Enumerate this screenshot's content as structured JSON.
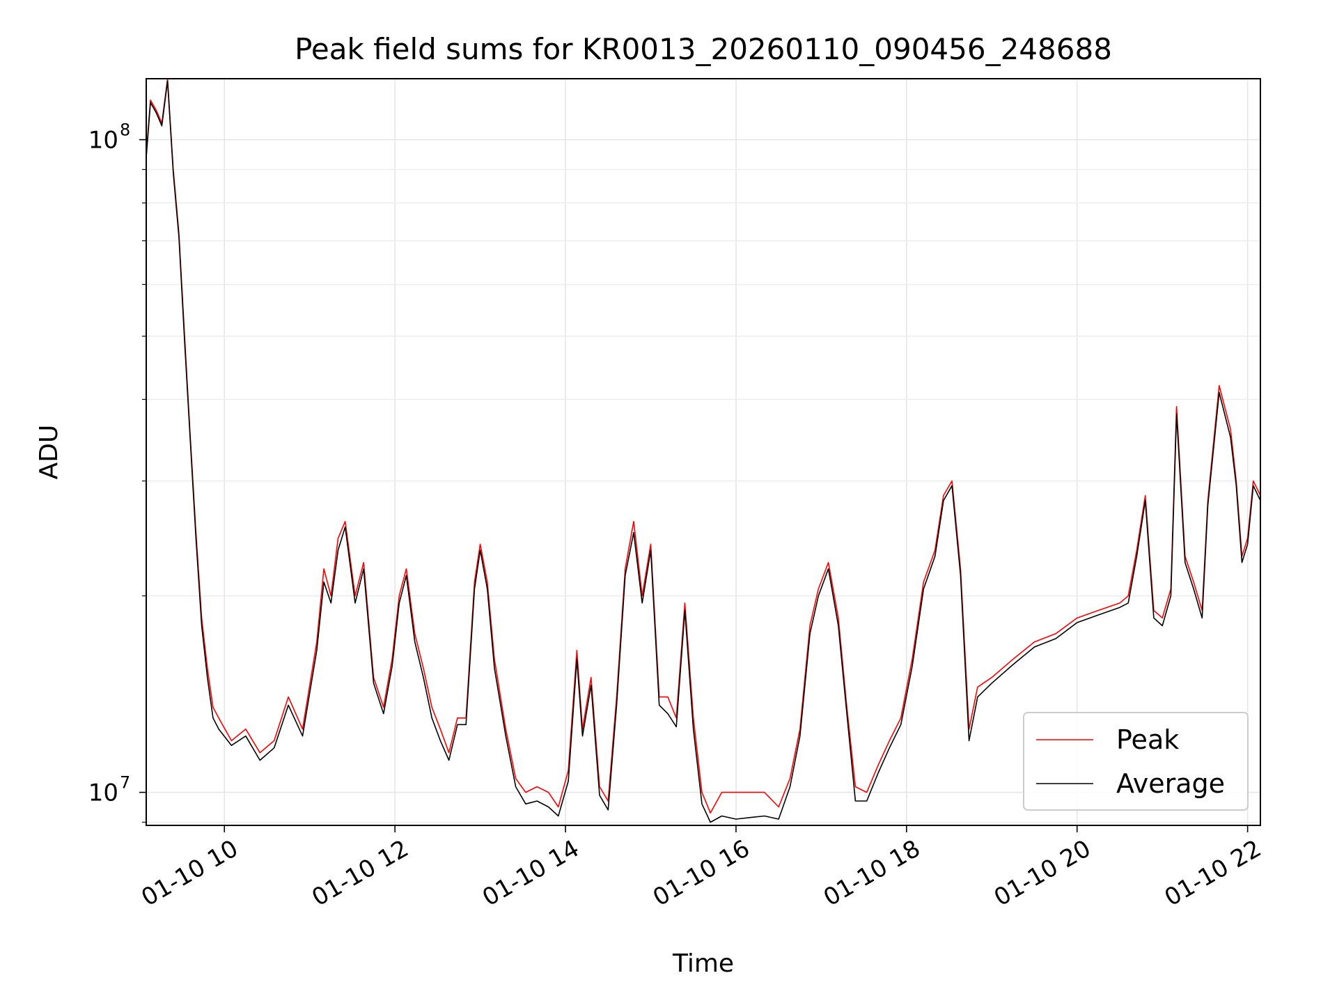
{
  "chart_data": {
    "type": "line",
    "title": "Peak field sums for KR0013_20260110_090456_248688",
    "xlabel": "Time",
    "ylabel": "ADU",
    "xlim": [
      "2026-01-10 09:05",
      "2026-01-10 22:09"
    ],
    "ylim": [
      8900000,
      124000000
    ],
    "yscale": "log",
    "grid": true,
    "legend_position": "lower-right",
    "x_ticks": [
      {
        "value": "2026-01-10 10:00",
        "label": "01-10 10"
      },
      {
        "value": "2026-01-10 12:00",
        "label": "01-10 12"
      },
      {
        "value": "2026-01-10 14:00",
        "label": "01-10 14"
      },
      {
        "value": "2026-01-10 16:00",
        "label": "01-10 16"
      },
      {
        "value": "2026-01-10 18:00",
        "label": "01-10 18"
      },
      {
        "value": "2026-01-10 20:00",
        "label": "01-10 20"
      },
      {
        "value": "2026-01-10 22:00",
        "label": "01-10 22"
      }
    ],
    "y_ticks": [
      {
        "value": 10000000,
        "label_base": "10",
        "label_exp": "7"
      },
      {
        "value": 100000000,
        "label_base": "10",
        "label_exp": "8"
      }
    ],
    "series": [
      {
        "name": "Peak",
        "color": "#ff0000",
        "points": [
          [
            "2026-01-10 09:05",
            95000000
          ],
          [
            "2026-01-10 09:08",
            115000000
          ],
          [
            "2026-01-10 09:12",
            111000000
          ],
          [
            "2026-01-10 09:16",
            106000000
          ],
          [
            "2026-01-10 09:20",
            124000000
          ],
          [
            "2026-01-10 09:24",
            90000000
          ],
          [
            "2026-01-10 09:28",
            72000000
          ],
          [
            "2026-01-10 09:32",
            50000000
          ],
          [
            "2026-01-10 09:36",
            35000000
          ],
          [
            "2026-01-10 09:40",
            25000000
          ],
          [
            "2026-01-10 09:44",
            18500000
          ],
          [
            "2026-01-10 09:48",
            15500000
          ],
          [
            "2026-01-10 09:52",
            13500000
          ],
          [
            "2026-01-10 09:56",
            13000000
          ],
          [
            "2026-01-10 10:05",
            12000000
          ],
          [
            "2026-01-10 10:15",
            12500000
          ],
          [
            "2026-01-10 10:25",
            11500000
          ],
          [
            "2026-01-10 10:35",
            12000000
          ],
          [
            "2026-01-10 10:45",
            14000000
          ],
          [
            "2026-01-10 10:55",
            12500000
          ],
          [
            "2026-01-10 11:05",
            17000000
          ],
          [
            "2026-01-10 11:10",
            22000000
          ],
          [
            "2026-01-10 11:15",
            20000000
          ],
          [
            "2026-01-10 11:20",
            24500000
          ],
          [
            "2026-01-10 11:25",
            26000000
          ],
          [
            "2026-01-10 11:32",
            20000000
          ],
          [
            "2026-01-10 11:38",
            22500000
          ],
          [
            "2026-01-10 11:45",
            15000000
          ],
          [
            "2026-01-10 11:52",
            13500000
          ],
          [
            "2026-01-10 11:58",
            16000000
          ],
          [
            "2026-01-10 12:03",
            20000000
          ],
          [
            "2026-01-10 12:08",
            22000000
          ],
          [
            "2026-01-10 12:14",
            17500000
          ],
          [
            "2026-01-10 12:20",
            15500000
          ],
          [
            "2026-01-10 12:26",
            13500000
          ],
          [
            "2026-01-10 12:32",
            12500000
          ],
          [
            "2026-01-10 12:38",
            11500000
          ],
          [
            "2026-01-10 12:44",
            13000000
          ],
          [
            "2026-01-10 12:50",
            13000000
          ],
          [
            "2026-01-10 12:56",
            21000000
          ],
          [
            "2026-01-10 13:00",
            24000000
          ],
          [
            "2026-01-10 13:05",
            21000000
          ],
          [
            "2026-01-10 13:10",
            16000000
          ],
          [
            "2026-01-10 13:18",
            12500000
          ],
          [
            "2026-01-10 13:25",
            10500000
          ],
          [
            "2026-01-10 13:32",
            10000000
          ],
          [
            "2026-01-10 13:40",
            10200000
          ],
          [
            "2026-01-10 13:48",
            10000000
          ],
          [
            "2026-01-10 13:55",
            9500000
          ],
          [
            "2026-01-10 14:02",
            10800000
          ],
          [
            "2026-01-10 14:08",
            16500000
          ],
          [
            "2026-01-10 14:12",
            12500000
          ],
          [
            "2026-01-10 14:18",
            15000000
          ],
          [
            "2026-01-10 14:24",
            10200000
          ],
          [
            "2026-01-10 14:30",
            9700000
          ],
          [
            "2026-01-10 14:36",
            14000000
          ],
          [
            "2026-01-10 14:42",
            22000000
          ],
          [
            "2026-01-10 14:48",
            26000000
          ],
          [
            "2026-01-10 14:54",
            20000000
          ],
          [
            "2026-01-10 15:00",
            24000000
          ],
          [
            "2026-01-10 15:06",
            14000000
          ],
          [
            "2026-01-10 15:12",
            14000000
          ],
          [
            "2026-01-10 15:18",
            13000000
          ],
          [
            "2026-01-10 15:24",
            19500000
          ],
          [
            "2026-01-10 15:30",
            13000000
          ],
          [
            "2026-01-10 15:36",
            10000000
          ],
          [
            "2026-01-10 15:42",
            9300000
          ],
          [
            "2026-01-10 15:50",
            10000000
          ],
          [
            "2026-01-10 16:00",
            10000000
          ],
          [
            "2026-01-10 16:10",
            10000000
          ],
          [
            "2026-01-10 16:20",
            10000000
          ],
          [
            "2026-01-10 16:30",
            9500000
          ],
          [
            "2026-01-10 16:38",
            10500000
          ],
          [
            "2026-01-10 16:45",
            12500000
          ],
          [
            "2026-01-10 16:52",
            18000000
          ],
          [
            "2026-01-10 16:58",
            20500000
          ],
          [
            "2026-01-10 17:05",
            22500000
          ],
          [
            "2026-01-10 17:12",
            18500000
          ],
          [
            "2026-01-10 17:18",
            13500000
          ],
          [
            "2026-01-10 17:24",
            10200000
          ],
          [
            "2026-01-10 17:32",
            10000000
          ],
          [
            "2026-01-10 17:40",
            11000000
          ],
          [
            "2026-01-10 17:48",
            12000000
          ],
          [
            "2026-01-10 17:56",
            13000000
          ],
          [
            "2026-01-10 18:04",
            16000000
          ],
          [
            "2026-01-10 18:12",
            21000000
          ],
          [
            "2026-01-10 18:20",
            23500000
          ],
          [
            "2026-01-10 18:26",
            28500000
          ],
          [
            "2026-01-10 18:32",
            30000000
          ],
          [
            "2026-01-10 18:38",
            22000000
          ],
          [
            "2026-01-10 18:44",
            12500000
          ],
          [
            "2026-01-10 18:50",
            14500000
          ],
          [
            "2026-01-10 19:00",
            15000000
          ],
          [
            "2026-01-10 19:15",
            16000000
          ],
          [
            "2026-01-10 19:30",
            17000000
          ],
          [
            "2026-01-10 19:45",
            17500000
          ],
          [
            "2026-01-10 20:00",
            18500000
          ],
          [
            "2026-01-10 20:15",
            19000000
          ],
          [
            "2026-01-10 20:30",
            19500000
          ],
          [
            "2026-01-10 20:36",
            20000000
          ],
          [
            "2026-01-10 20:42",
            23500000
          ],
          [
            "2026-01-10 20:48",
            28500000
          ],
          [
            "2026-01-10 20:54",
            19000000
          ],
          [
            "2026-01-10 21:00",
            18500000
          ],
          [
            "2026-01-10 21:06",
            20500000
          ],
          [
            "2026-01-10 21:10",
            39000000
          ],
          [
            "2026-01-10 21:16",
            23000000
          ],
          [
            "2026-01-10 21:22",
            21000000
          ],
          [
            "2026-01-10 21:28",
            19000000
          ],
          [
            "2026-01-10 21:32",
            28000000
          ],
          [
            "2026-01-10 21:40",
            42000000
          ],
          [
            "2026-01-10 21:48",
            36000000
          ],
          [
            "2026-01-10 21:52",
            30000000
          ],
          [
            "2026-01-10 21:56",
            23000000
          ],
          [
            "2026-01-10 22:00",
            24500000
          ],
          [
            "2026-01-10 22:04",
            30000000
          ],
          [
            "2026-01-10 22:09",
            28500000
          ]
        ]
      },
      {
        "name": "Average",
        "color": "#000000",
        "points": [
          [
            "2026-01-10 09:05",
            94000000
          ],
          [
            "2026-01-10 09:08",
            114000000
          ],
          [
            "2026-01-10 09:12",
            110000000
          ],
          [
            "2026-01-10 09:16",
            105000000
          ],
          [
            "2026-01-10 09:20",
            123000000
          ],
          [
            "2026-01-10 09:24",
            89000000
          ],
          [
            "2026-01-10 09:28",
            71000000
          ],
          [
            "2026-01-10 09:32",
            49000000
          ],
          [
            "2026-01-10 09:36",
            34500000
          ],
          [
            "2026-01-10 09:40",
            24500000
          ],
          [
            "2026-01-10 09:44",
            18000000
          ],
          [
            "2026-01-10 09:48",
            15000000
          ],
          [
            "2026-01-10 09:52",
            13000000
          ],
          [
            "2026-01-10 09:56",
            12500000
          ],
          [
            "2026-01-10 10:05",
            11800000
          ],
          [
            "2026-01-10 10:15",
            12200000
          ],
          [
            "2026-01-10 10:25",
            11200000
          ],
          [
            "2026-01-10 10:35",
            11700000
          ],
          [
            "2026-01-10 10:45",
            13600000
          ],
          [
            "2026-01-10 10:55",
            12200000
          ],
          [
            "2026-01-10 11:05",
            16500000
          ],
          [
            "2026-01-10 11:10",
            21000000
          ],
          [
            "2026-01-10 11:15",
            19500000
          ],
          [
            "2026-01-10 11:20",
            23500000
          ],
          [
            "2026-01-10 11:25",
            25500000
          ],
          [
            "2026-01-10 11:32",
            19500000
          ],
          [
            "2026-01-10 11:38",
            22000000
          ],
          [
            "2026-01-10 11:45",
            14700000
          ],
          [
            "2026-01-10 11:52",
            13200000
          ],
          [
            "2026-01-10 11:58",
            15600000
          ],
          [
            "2026-01-10 12:03",
            19500000
          ],
          [
            "2026-01-10 12:08",
            21500000
          ],
          [
            "2026-01-10 12:14",
            17000000
          ],
          [
            "2026-01-10 12:20",
            15000000
          ],
          [
            "2026-01-10 12:26",
            13000000
          ],
          [
            "2026-01-10 12:32",
            12000000
          ],
          [
            "2026-01-10 12:38",
            11200000
          ],
          [
            "2026-01-10 12:44",
            12700000
          ],
          [
            "2026-01-10 12:50",
            12700000
          ],
          [
            "2026-01-10 12:56",
            20500000
          ],
          [
            "2026-01-10 13:00",
            23500000
          ],
          [
            "2026-01-10 13:05",
            20500000
          ],
          [
            "2026-01-10 13:10",
            15500000
          ],
          [
            "2026-01-10 13:18",
            12200000
          ],
          [
            "2026-01-10 13:25",
            10200000
          ],
          [
            "2026-01-10 13:32",
            9600000
          ],
          [
            "2026-01-10 13:40",
            9700000
          ],
          [
            "2026-01-10 13:48",
            9500000
          ],
          [
            "2026-01-10 13:55",
            9200000
          ],
          [
            "2026-01-10 14:02",
            10400000
          ],
          [
            "2026-01-10 14:08",
            16000000
          ],
          [
            "2026-01-10 14:12",
            12200000
          ],
          [
            "2026-01-10 14:18",
            14600000
          ],
          [
            "2026-01-10 14:24",
            9900000
          ],
          [
            "2026-01-10 14:30",
            9400000
          ],
          [
            "2026-01-10 14:36",
            13600000
          ],
          [
            "2026-01-10 14:42",
            21500000
          ],
          [
            "2026-01-10 14:48",
            25000000
          ],
          [
            "2026-01-10 14:54",
            19500000
          ],
          [
            "2026-01-10 15:00",
            23500000
          ],
          [
            "2026-01-10 15:06",
            13600000
          ],
          [
            "2026-01-10 15:12",
            13200000
          ],
          [
            "2026-01-10 15:18",
            12600000
          ],
          [
            "2026-01-10 15:24",
            19000000
          ],
          [
            "2026-01-10 15:30",
            12500000
          ],
          [
            "2026-01-10 15:36",
            9600000
          ],
          [
            "2026-01-10 15:42",
            9000000
          ],
          [
            "2026-01-10 15:50",
            9200000
          ],
          [
            "2026-01-10 16:00",
            9100000
          ],
          [
            "2026-01-10 16:10",
            9150000
          ],
          [
            "2026-01-10 16:20",
            9200000
          ],
          [
            "2026-01-10 16:30",
            9100000
          ],
          [
            "2026-01-10 16:38",
            10200000
          ],
          [
            "2026-01-10 16:45",
            12200000
          ],
          [
            "2026-01-10 16:52",
            17500000
          ],
          [
            "2026-01-10 16:58",
            20000000
          ],
          [
            "2026-01-10 17:05",
            22000000
          ],
          [
            "2026-01-10 17:12",
            18000000
          ],
          [
            "2026-01-10 17:18",
            13200000
          ],
          [
            "2026-01-10 17:24",
            9700000
          ],
          [
            "2026-01-10 17:32",
            9700000
          ],
          [
            "2026-01-10 17:40",
            10700000
          ],
          [
            "2026-01-10 17:48",
            11700000
          ],
          [
            "2026-01-10 17:56",
            12700000
          ],
          [
            "2026-01-10 18:04",
            15600000
          ],
          [
            "2026-01-10 18:12",
            20500000
          ],
          [
            "2026-01-10 18:20",
            23000000
          ],
          [
            "2026-01-10 18:26",
            28000000
          ],
          [
            "2026-01-10 18:32",
            29500000
          ],
          [
            "2026-01-10 18:38",
            21500000
          ],
          [
            "2026-01-10 18:44",
            12000000
          ],
          [
            "2026-01-10 18:50",
            14000000
          ],
          [
            "2026-01-10 19:00",
            14700000
          ],
          [
            "2026-01-10 19:15",
            15700000
          ],
          [
            "2026-01-10 19:30",
            16700000
          ],
          [
            "2026-01-10 19:45",
            17200000
          ],
          [
            "2026-01-10 20:00",
            18200000
          ],
          [
            "2026-01-10 20:15",
            18700000
          ],
          [
            "2026-01-10 20:30",
            19200000
          ],
          [
            "2026-01-10 20:36",
            19500000
          ],
          [
            "2026-01-10 20:42",
            23000000
          ],
          [
            "2026-01-10 20:48",
            28000000
          ],
          [
            "2026-01-10 20:54",
            18500000
          ],
          [
            "2026-01-10 21:00",
            18000000
          ],
          [
            "2026-01-10 21:06",
            20000000
          ],
          [
            "2026-01-10 21:10",
            38000000
          ],
          [
            "2026-01-10 21:16",
            22500000
          ],
          [
            "2026-01-10 21:22",
            20500000
          ],
          [
            "2026-01-10 21:28",
            18500000
          ],
          [
            "2026-01-10 21:32",
            27500000
          ],
          [
            "2026-01-10 21:40",
            41000000
          ],
          [
            "2026-01-10 21:48",
            35000000
          ],
          [
            "2026-01-10 21:52",
            29500000
          ],
          [
            "2026-01-10 21:56",
            22500000
          ],
          [
            "2026-01-10 22:00",
            24000000
          ],
          [
            "2026-01-10 22:04",
            29500000
          ],
          [
            "2026-01-10 22:09",
            28000000
          ]
        ]
      }
    ]
  }
}
